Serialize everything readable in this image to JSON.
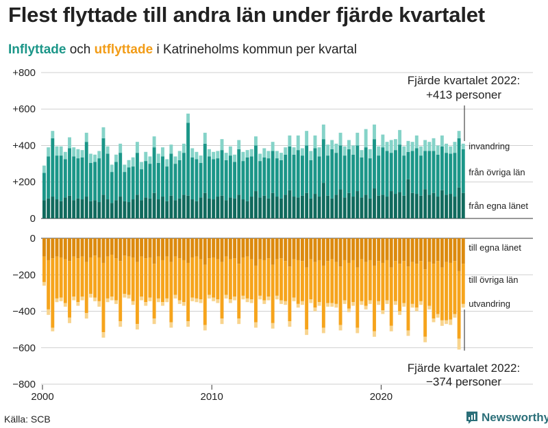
{
  "header": {
    "title": "Flest flyttade till andra län under fjärde kvartalet",
    "subtitle_in": "Inflyttade",
    "subtitle_and": "och",
    "subtitle_out": "utflyttade",
    "subtitle_rest": "i Katrineholms kommun per kvartal"
  },
  "footer": {
    "source": "Källa: SCB",
    "brand": "Newsworthy"
  },
  "colors": {
    "in_egna": "#106a5d",
    "in_ovriga": "#1b9688",
    "in_rest": "#85d3c8",
    "out_egna": "#dc8a0e",
    "out_ovriga": "#f6a41c",
    "out_rest": "#f8d48e",
    "brand": "#2b6f79"
  },
  "chart_data": {
    "type": "bar",
    "title": "Flest flyttade till andra län under fjärde kvartalet",
    "subtitle": "Inflyttade och utflyttade i Katrineholms kommun per kvartal",
    "x_start_year": 2000,
    "x_ticks": [
      "2000",
      "2010",
      "2020"
    ],
    "ylim": [
      -800,
      800
    ],
    "y_ticks": [
      "+800",
      "+600",
      "+400",
      "+200",
      "0",
      "−200",
      "−400",
      "−600",
      "−800"
    ],
    "quarters_per_year": 4,
    "series_labels": {
      "invandring": "invandring",
      "fran_ovriga_lan": "från övriga län",
      "fran_egna_lanet": "från egna länet",
      "till_egna_lanet": "till egna länet",
      "till_ovriga_lan": "till övriga län",
      "utvandring": "utvandring"
    },
    "annotation_in": [
      "Fjärde kvartalet 2022:",
      "+413 personer"
    ],
    "annotation_out": [
      "Fjärde kvartalet 2022:",
      "−374 personer"
    ],
    "inflyttade": {
      "fran_egna_lanet": [
        100,
        110,
        120,
        105,
        95,
        115,
        125,
        100,
        110,
        105,
        120,
        95,
        100,
        90,
        130,
        105,
        85,
        100,
        120,
        95,
        90,
        105,
        130,
        100,
        115,
        110,
        140,
        105,
        120,
        95,
        125,
        100,
        110,
        130,
        125,
        105,
        95,
        115,
        140,
        110,
        105,
        120,
        125,
        100,
        115,
        110,
        130,
        105,
        95,
        120,
        150,
        115,
        125,
        110,
        140,
        120,
        110,
        130,
        155,
        120,
        115,
        125,
        140,
        110,
        135,
        120,
        195,
        125,
        110,
        130,
        160,
        115,
        140,
        120,
        150,
        115,
        130,
        110,
        165,
        125,
        130,
        120,
        150,
        135,
        145,
        125,
        215,
        140,
        135,
        125,
        160,
        130,
        140,
        120,
        155,
        130,
        135,
        120,
        170,
        140
      ],
      "fran_ovriga_lan": [
        150,
        230,
        320,
        240,
        250,
        210,
        260,
        240,
        220,
        230,
        300,
        210,
        210,
        240,
        310,
        250,
        170,
        210,
        240,
        160,
        190,
        180,
        230,
        170,
        200,
        190,
        250,
        200,
        220,
        190,
        230,
        200,
        210,
        230,
        400,
        230,
        230,
        190,
        270,
        230,
        220,
        210,
        250,
        220,
        230,
        200,
        250,
        210,
        240,
        220,
        250,
        200,
        210,
        220,
        230,
        210,
        210,
        220,
        240,
        230,
        260,
        220,
        260,
        210,
        250,
        220,
        240,
        220,
        270,
        230,
        240,
        230,
        240,
        230,
        250,
        220,
        260,
        220,
        270,
        220,
        260,
        250,
        210,
        240,
        260,
        220,
        150,
        230,
        250,
        220,
        210,
        240,
        230,
        230,
        240,
        230,
        220,
        240,
        270,
        240
      ],
      "invandring": [
        40,
        50,
        40,
        50,
        50,
        40,
        60,
        50,
        50,
        40,
        50,
        50,
        40,
        40,
        60,
        40,
        40,
        40,
        50,
        40,
        40,
        50,
        60,
        40,
        50,
        40,
        60,
        50,
        50,
        40,
        50,
        40,
        50,
        50,
        50,
        50,
        40,
        40,
        60,
        40,
        40,
        40,
        60,
        40,
        50,
        40,
        50,
        50,
        40,
        40,
        50,
        40,
        50,
        40,
        50,
        40,
        40,
        40,
        60,
        40,
        80,
        40,
        80,
        50,
        70,
        50,
        80,
        60,
        50,
        50,
        70,
        50,
        50,
        50,
        70,
        40,
        100,
        50,
        80,
        50,
        70,
        50,
        70,
        60,
        80,
        50,
        60,
        50,
        70,
        50,
        60,
        50,
        70,
        50,
        60,
        50,
        40,
        60,
        40,
        30
      ]
    },
    "utflyttade": {
      "till_egna_lanet": [
        100,
        120,
        110,
        100,
        105,
        115,
        125,
        100,
        110,
        100,
        130,
        105,
        95,
        105,
        135,
        100,
        90,
        110,
        125,
        95,
        100,
        105,
        130,
        100,
        110,
        105,
        140,
        100,
        120,
        100,
        130,
        100,
        110,
        120,
        135,
        105,
        100,
        115,
        145,
        110,
        105,
        115,
        130,
        100,
        115,
        110,
        140,
        105,
        100,
        115,
        150,
        115,
        120,
        110,
        145,
        115,
        110,
        125,
        155,
        115,
        120,
        125,
        160,
        115,
        130,
        120,
        150,
        125,
        115,
        130,
        155,
        120,
        135,
        120,
        160,
        115,
        130,
        120,
        150,
        125,
        135,
        120,
        160,
        125,
        140,
        125,
        155,
        130,
        140,
        125,
        170,
        130,
        140,
        125,
        160,
        130,
        135,
        125,
        180,
        140
      ],
      "till_ovriga_lan": [
        140,
        270,
        380,
        230,
        220,
        240,
        310,
        220,
        240,
        220,
        280,
        200,
        230,
        240,
        380,
        230,
        230,
        230,
        330,
        210,
        210,
        240,
        340,
        220,
        240,
        220,
        300,
        230,
        230,
        230,
        330,
        210,
        230,
        230,
        320,
        220,
        230,
        220,
        330,
        200,
        220,
        220,
        310,
        210,
        220,
        210,
        300,
        210,
        230,
        220,
        310,
        200,
        220,
        210,
        320,
        200,
        230,
        220,
        300,
        210,
        240,
        220,
        340,
        220,
        250,
        230,
        340,
        230,
        240,
        230,
        320,
        220,
        250,
        230,
        330,
        230,
        240,
        220,
        360,
        220,
        260,
        220,
        320,
        220,
        260,
        230,
        350,
        230,
        240,
        220,
        370,
        240,
        300,
        290,
        290,
        320,
        310,
        290,
        370,
        220
      ],
      "utvandring": [
        20,
        30,
        20,
        20,
        20,
        20,
        30,
        20,
        20,
        20,
        30,
        20,
        20,
        30,
        30,
        20,
        20,
        20,
        30,
        20,
        20,
        20,
        30,
        20,
        20,
        20,
        30,
        20,
        20,
        20,
        30,
        20,
        20,
        20,
        30,
        20,
        20,
        20,
        30,
        20,
        20,
        20,
        30,
        20,
        20,
        20,
        30,
        20,
        20,
        20,
        30,
        20,
        20,
        20,
        30,
        20,
        20,
        20,
        30,
        20,
        20,
        20,
        30,
        20,
        20,
        20,
        30,
        20,
        20,
        20,
        30,
        20,
        20,
        20,
        30,
        20,
        20,
        20,
        30,
        20,
        20,
        20,
        30,
        20,
        20,
        20,
        30,
        20,
        20,
        20,
        30,
        20,
        20,
        20,
        30,
        20,
        30,
        20,
        60,
        20
      ]
    }
  }
}
